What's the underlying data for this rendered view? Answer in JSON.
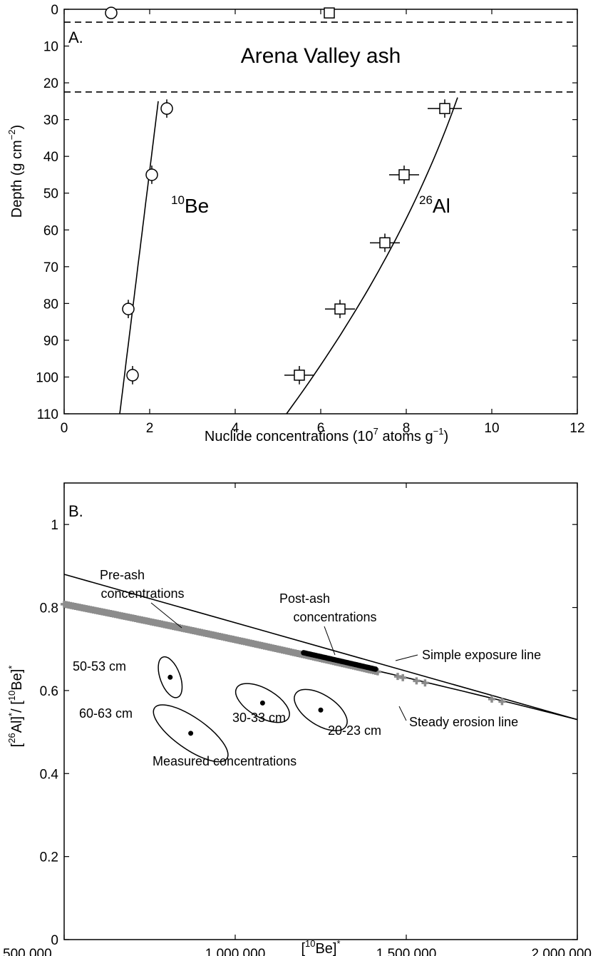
{
  "chart_data": [
    {
      "type": "scatter",
      "panel_label": "A.",
      "xlabel": "Nuclide concentrations (10^7 atoms g^-1)",
      "xlabel_parts": {
        "pre": "Nuclide concentrations (10",
        "sup1": "7",
        "mid": " atoms g",
        "sup2": "−1",
        "post": ")"
      },
      "ylabel": "Depth (g cm^-2)",
      "ylabel_parts": {
        "pre": "Depth (g cm",
        "sup": "−2",
        "post": ")"
      },
      "xlim": [
        0,
        12
      ],
      "ylim": [
        110,
        0
      ],
      "y_inverted": true,
      "x_ticks": [
        0,
        2,
        4,
        6,
        8,
        10,
        12
      ],
      "y_ticks": [
        0,
        10,
        20,
        30,
        40,
        50,
        60,
        70,
        80,
        90,
        100,
        110
      ],
      "ash_layer": {
        "label": "Arena Valley ash",
        "top": 3.5,
        "bottom": 22.5
      },
      "series": [
        {
          "name": "10Be",
          "label_sup": "10",
          "label_text": "Be",
          "marker": "circle",
          "points": [
            {
              "x": 1.1,
              "y": 1
            },
            {
              "x": 2.4,
              "y": 27,
              "yerr": 2.5
            },
            {
              "x": 2.05,
              "y": 45,
              "yerr": 2.5
            },
            {
              "x": 1.5,
              "y": 81.5,
              "yerr": 2.5
            },
            {
              "x": 1.6,
              "y": 99.5,
              "yerr": 2.5
            }
          ],
          "fit": {
            "x_at_top": 2.2,
            "y_top": 25,
            "x_at_bottom": 1.3,
            "y_bottom": 110
          }
        },
        {
          "name": "26Al",
          "label_sup": "26",
          "label_text": "Al",
          "marker": "square",
          "points": [
            {
              "x": 6.2,
              "y": 1
            },
            {
              "x": 8.9,
              "y": 27,
              "xerr": 0.4,
              "yerr": 2.5
            },
            {
              "x": 7.95,
              "y": 45,
              "xerr": 0.35,
              "yerr": 2.5
            },
            {
              "x": 7.5,
              "y": 63.5,
              "xerr": 0.35,
              "yerr": 2.5
            },
            {
              "x": 6.45,
              "y": 81.5,
              "xerr": 0.35,
              "yerr": 2.5
            },
            {
              "x": 5.5,
              "y": 99.5,
              "xerr": 0.35,
              "yerr": 2.5
            }
          ],
          "fit": {
            "x_at_top": 9.2,
            "y_top": 24,
            "x_at_bottom": 5.2,
            "y_bottom": 110,
            "curvature": 0.35
          }
        }
      ]
    },
    {
      "type": "scatter",
      "panel_label": "B.",
      "xlabel": "[10Be]*",
      "xlabel_parts": {
        "pre": "[",
        "sup1": "10",
        "mid": "Be]",
        "sup2": "*"
      },
      "ylabel": "[26Al]*/ [10Be]*",
      "ylabel_parts": {
        "a": "[",
        "s1": "26",
        "b": "Al]",
        "s2": "*",
        "c": "/ [",
        "s3": "10",
        "d": "Be]",
        "s4": "*"
      },
      "xlim": [
        500000,
        2000000
      ],
      "ylim": [
        0,
        1.1
      ],
      "x_ticks": [
        500000,
        1000000,
        1500000,
        2000000
      ],
      "x_tick_labels": [
        "500,000",
        "1,000,000",
        "1,500,000",
        "2,000,000"
      ],
      "y_ticks": [
        0,
        0.2,
        0.4,
        0.6,
        0.8,
        1
      ],
      "y_tick_labels": [
        "0",
        "0.2",
        "0.4",
        "0.6",
        "0.8",
        "1"
      ],
      "lines": {
        "simple_exposure": {
          "label": "Simple exposure line",
          "x": [
            500000,
            2000000
          ],
          "y": [
            0.88,
            0.53
          ]
        },
        "steady_erosion": {
          "label": "Steady erosion line",
          "x": [
            500000,
            2000000
          ],
          "y": [
            0.81,
            0.53
          ],
          "curvature": -0.035
        }
      },
      "pre_ash": {
        "label_lines": [
          "Pre-ash",
          "concentrations"
        ],
        "x_range": [
          500000,
          1780000
        ],
        "y_range": [
          0.808,
          0.578
        ],
        "color": "#8c8c8c"
      },
      "post_ash": {
        "label_lines": [
          "Post-ash",
          "concentrations"
        ],
        "x_range": [
          1200000,
          1410000
        ],
        "y_range": [
          0.654,
          0.621
        ],
        "color": "#000000"
      },
      "measured": {
        "label": "Measured concentrations",
        "samples": [
          {
            "label": "50-53 cm",
            "x": 810000,
            "y": 0.632,
            "rx": 40000,
            "ry": 0.05,
            "angle_deg": 0
          },
          {
            "label": "60-63 cm",
            "x": 870000,
            "y": 0.497,
            "rx": 100000,
            "ry": 0.055,
            "angle_deg": 0
          },
          {
            "label": "30-33 cm",
            "x": 1080000,
            "y": 0.57,
            "rx": 60000,
            "ry": 0.045,
            "angle_deg": 0
          },
          {
            "label": "20-23 cm",
            "x": 1250000,
            "y": 0.553,
            "rx": 60000,
            "ry": 0.045,
            "angle_deg": 0
          }
        ]
      }
    }
  ]
}
